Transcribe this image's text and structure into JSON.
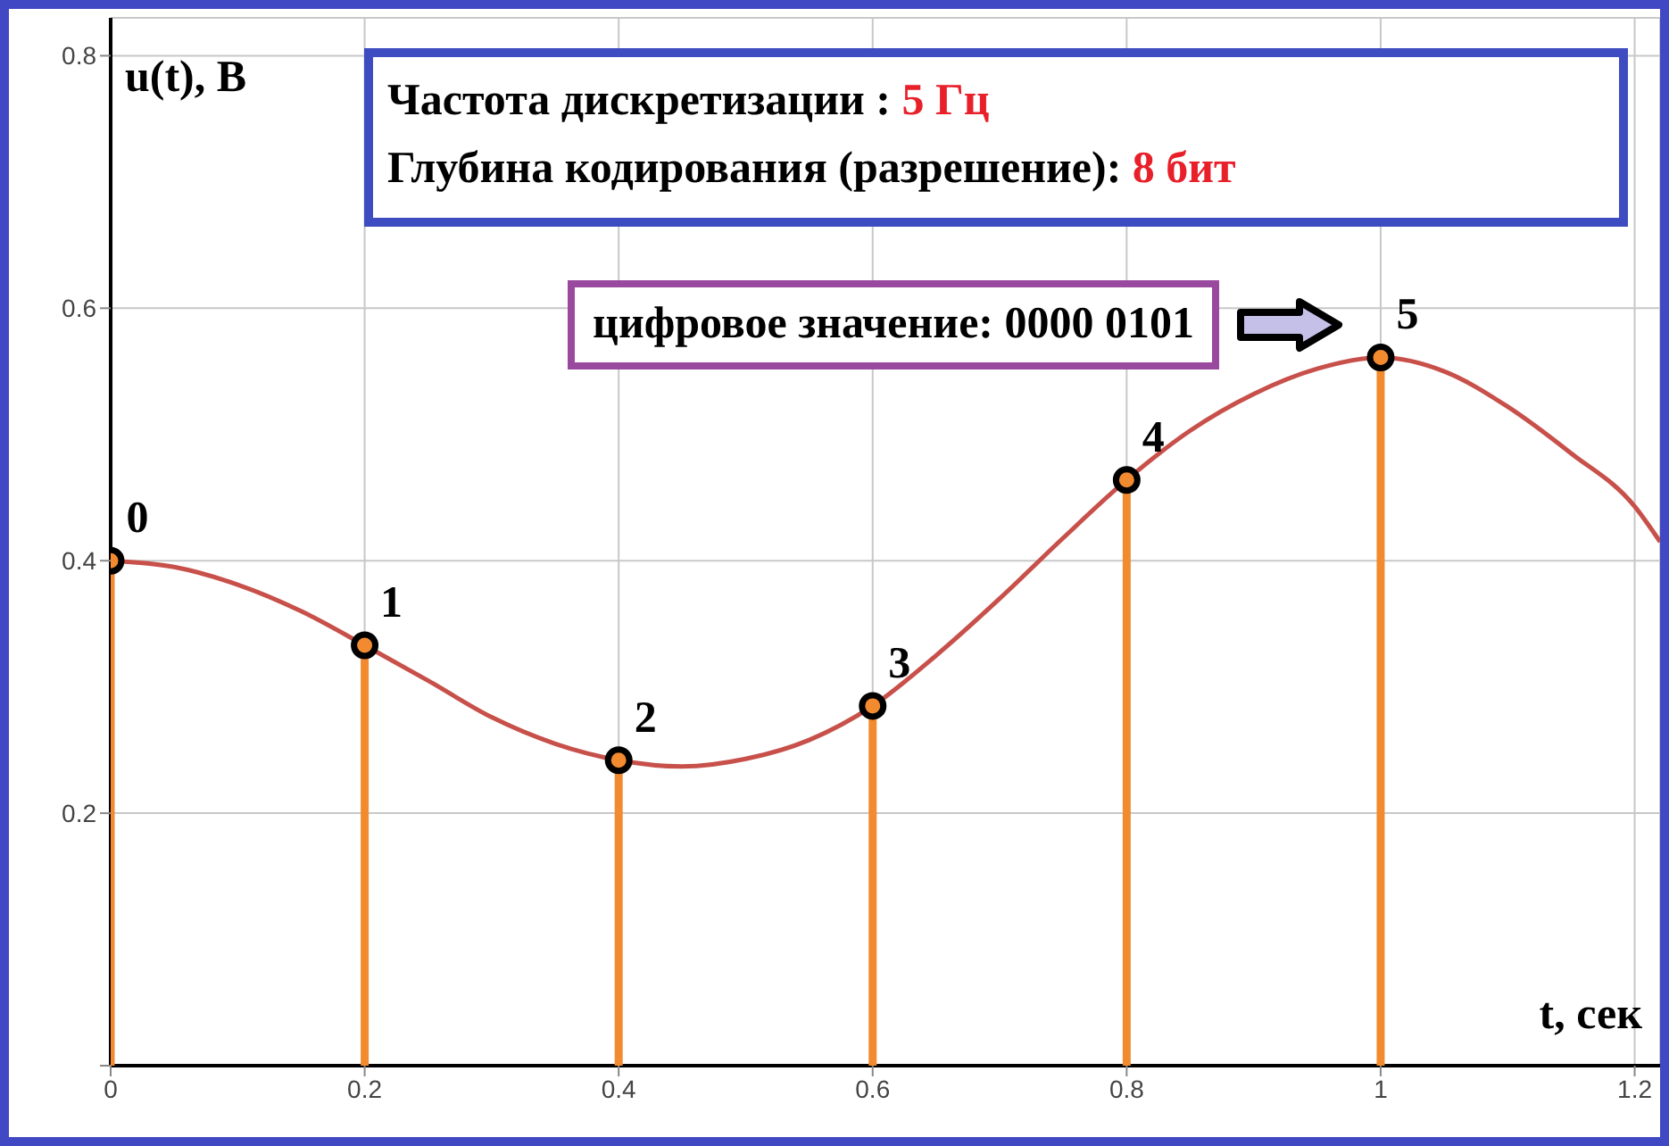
{
  "chart_data": {
    "type": "lollipop",
    "marker": "circle",
    "xlabel": "t, сек",
    "ylabel": "u(t), В",
    "xlim": [
      0,
      1.22
    ],
    "ylim": [
      0,
      0.83
    ],
    "xticks": [
      0,
      0.2,
      0.4,
      0.6,
      0.8,
      1,
      1.2
    ],
    "yticks": [
      {
        "value": 0,
        "label": null
      },
      0.2,
      0.4,
      0.6,
      0.8
    ],
    "grid": true,
    "series": [
      {
        "type": "line",
        "marker": "none",
        "color": "#c8504a",
        "x": [
          0,
          0.05,
          0.1,
          0.15,
          0.2,
          0.25,
          0.3,
          0.35,
          0.4,
          0.45,
          0.5,
          0.55,
          0.6,
          0.65,
          0.7,
          0.75,
          0.8,
          0.85,
          0.9,
          0.95,
          1,
          1.05,
          1.1,
          1.15,
          1.2,
          1.22
        ],
        "values": [
          0.4,
          0.395,
          0.381,
          0.36,
          0.333,
          0.305,
          0.276,
          0.255,
          0.242,
          0.237,
          0.243,
          0.258,
          0.285,
          0.325,
          0.37,
          0.418,
          0.464,
          0.503,
          0.532,
          0.552,
          0.561,
          0.55,
          0.522,
          0.485,
          0.443,
          0.415
        ]
      },
      {
        "color": "#f28a30",
        "x": [
          0,
          0.2,
          0.4,
          0.6,
          0.8,
          1
        ],
        "values": [
          0.4,
          0.333,
          0.242,
          0.285,
          0.464,
          0.561
        ]
      }
    ],
    "annotations": [
      "Частота дискретизации :",
      "5 Гц",
      "Глубина кодирования (разрешение):",
      "8 бит",
      "цифровое значение:  0000 0101",
      {
        "text": "0",
        "x": 0,
        "y": 0.4
      },
      {
        "text": "1",
        "x": 0.2,
        "y": 0.333
      },
      {
        "text": "2",
        "x": 0.4,
        "y": 0.242
      },
      {
        "text": "3",
        "x": 0.6,
        "y": 0.285
      },
      {
        "text": "4",
        "x": 0.8,
        "y": 0.464
      },
      {
        "text": "5",
        "x": 1,
        "y": 0.561
      }
    ]
  }
}
